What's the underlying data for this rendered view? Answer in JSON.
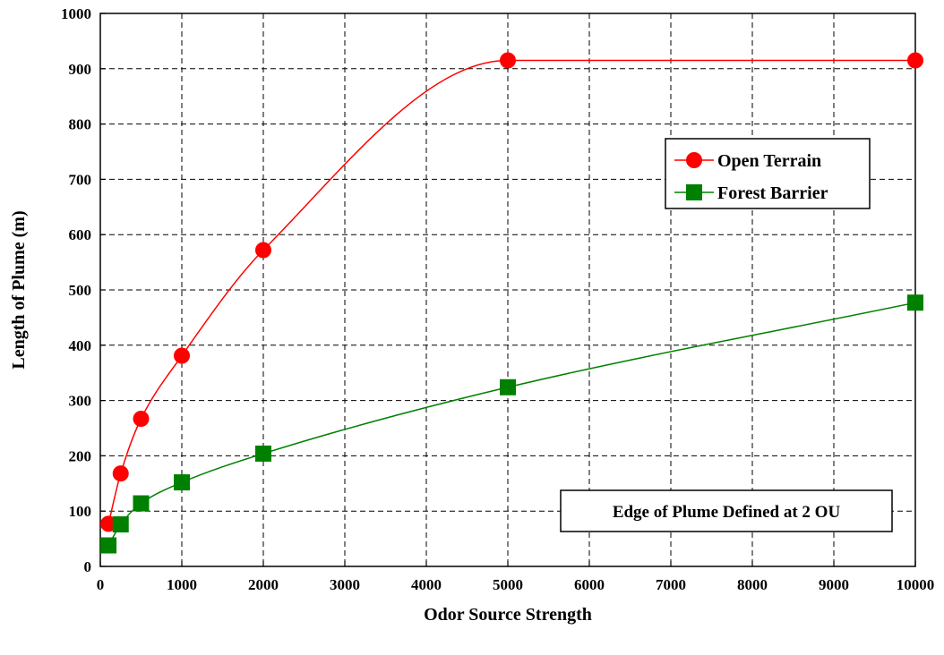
{
  "chart_data": {
    "type": "line",
    "xlabel": "Odor Source Strength",
    "ylabel": "Length of Plume (m)",
    "xlim": [
      0,
      10000
    ],
    "ylim": [
      0,
      1000
    ],
    "xticks": [
      0,
      1000,
      2000,
      3000,
      4000,
      5000,
      6000,
      7000,
      8000,
      9000,
      10000
    ],
    "yticks": [
      0,
      100,
      200,
      300,
      400,
      500,
      600,
      700,
      800,
      900,
      1000
    ],
    "grid": true,
    "legend_position": "right",
    "series": [
      {
        "name": "Open Terrain",
        "color": "#ff0000",
        "marker": "circle",
        "smooth": true,
        "x": [
          100,
          250,
          500,
          1000,
          2000,
          5000,
          10000
        ],
        "y": [
          77,
          168,
          267,
          381,
          572,
          915,
          915
        ]
      },
      {
        "name": "Forest Barrier",
        "color": "#008000",
        "marker": "square",
        "smooth": true,
        "x": [
          100,
          250,
          500,
          1000,
          2000,
          5000,
          10000
        ],
        "y": [
          38,
          76,
          114,
          152,
          204,
          324,
          477
        ]
      }
    ],
    "annotations": [
      {
        "text": "Edge of Plume Defined at 2 OU"
      }
    ]
  }
}
